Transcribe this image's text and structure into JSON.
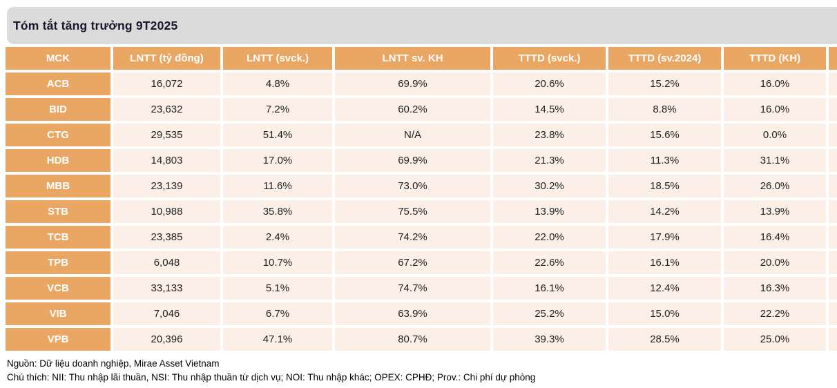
{
  "title": "Tóm tắt tăng trưởng 9T2025",
  "table": {
    "columns": [
      "MCK",
      "LNTT (tỷ đồng)",
      "LNTT (svck.)",
      "LNTT sv. KH",
      "TTTD (svck.)",
      "TTTD (sv.2024)",
      "TTTD (KH)"
    ],
    "rows": [
      {
        "ticker": "ACB",
        "values": [
          "16,072",
          "4.8%",
          "69.9%",
          "20.6%",
          "15.2%",
          "16.0%"
        ]
      },
      {
        "ticker": "BID",
        "values": [
          "23,632",
          "7.2%",
          "60.2%",
          "14.5%",
          "8.8%",
          "16.0%"
        ]
      },
      {
        "ticker": "CTG",
        "values": [
          "29,535",
          "51.4%",
          "N/A",
          "23.8%",
          "15.6%",
          "0.0%"
        ]
      },
      {
        "ticker": "HDB",
        "values": [
          "14,803",
          "17.0%",
          "69.9%",
          "21.3%",
          "11.3%",
          "31.1%"
        ]
      },
      {
        "ticker": "MBB",
        "values": [
          "23,139",
          "11.6%",
          "73.0%",
          "30.2%",
          "18.5%",
          "26.0%"
        ]
      },
      {
        "ticker": "STB",
        "values": [
          "10,988",
          "35.8%",
          "75.5%",
          "13.9%",
          "14.2%",
          "13.9%"
        ]
      },
      {
        "ticker": "TCB",
        "values": [
          "23,385",
          "2.4%",
          "74.2%",
          "22.0%",
          "17.9%",
          "16.4%"
        ]
      },
      {
        "ticker": "TPB",
        "values": [
          "6,048",
          "10.7%",
          "67.2%",
          "22.6%",
          "16.1%",
          "20.0%"
        ]
      },
      {
        "ticker": "VCB",
        "values": [
          "33,133",
          "5.1%",
          "74.7%",
          "16.1%",
          "12.4%",
          "16.3%"
        ]
      },
      {
        "ticker": "VIB",
        "values": [
          "7,046",
          "6.7%",
          "63.9%",
          "25.2%",
          "15.0%",
          "22.2%"
        ]
      },
      {
        "ticker": "VPB",
        "values": [
          "20,396",
          "47.1%",
          "80.7%",
          "39.3%",
          "28.5%",
          "25.0%"
        ]
      }
    ]
  },
  "footer": {
    "source": "Nguồn: Dữ liệu doanh nghiệp, Mirae Asset Vietnam",
    "note": "Chú thích: NII: Thu nhập lãi thuần, NSI: Thu nhập thuần từ dịch vụ; NOI: Thu nhập khác;  OPEX: CPHĐ; Prov.: Chi phí dự phòng"
  },
  "colors": {
    "header_orange": "#eaa764",
    "cell_pink": "#fbefe8",
    "title_bar_gray": "#dbdbdb",
    "header_text": "#ffffff",
    "cell_text": "#1f1f1f"
  }
}
